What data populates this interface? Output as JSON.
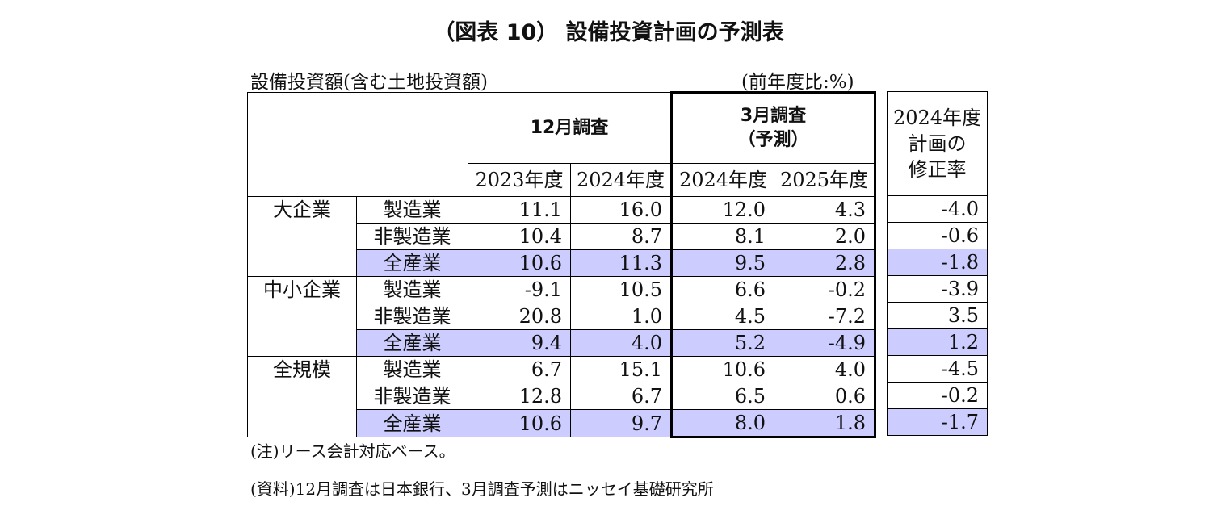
{
  "title": "（図表 10） 設備投資計画の予測表",
  "subtitle": "設備投資額(含む土地投資額)",
  "unit": "(前年度比:%)",
  "headers": {
    "survey_dec": "12月調査",
    "survey_mar_line1": "3月調査",
    "survey_mar_line2": "（予測）",
    "y2023": "2023年度",
    "y2024a": "2024年度",
    "y2024b": "2024年度",
    "y2025": "2025年度",
    "revision_line1": "2024年度",
    "revision_line2": "計画の",
    "revision_line3": "修正率"
  },
  "groups": [
    {
      "name": "大企業",
      "rows": [
        {
          "label": "製造業",
          "d2023": "11.1",
          "d2024": "16.0",
          "m2024": "12.0",
          "m2025": "4.3",
          "rev": "-4.0"
        },
        {
          "label": "非製造業",
          "d2023": "10.4",
          "d2024": "8.7",
          "m2024": "8.1",
          "m2025": "2.0",
          "rev": "-0.6"
        },
        {
          "label": "全産業",
          "d2023": "10.6",
          "d2024": "11.3",
          "m2024": "9.5",
          "m2025": "2.8",
          "rev": "-1.8"
        }
      ]
    },
    {
      "name": "中小企業",
      "rows": [
        {
          "label": "製造業",
          "d2023": "-9.1",
          "d2024": "10.5",
          "m2024": "6.6",
          "m2025": "-0.2",
          "rev": "-3.9"
        },
        {
          "label": "非製造業",
          "d2023": "20.8",
          "d2024": "1.0",
          "m2024": "4.5",
          "m2025": "-7.2",
          "rev": "3.5"
        },
        {
          "label": "全産業",
          "d2023": "9.4",
          "d2024": "4.0",
          "m2024": "5.2",
          "m2025": "-4.9",
          "rev": "1.2"
        }
      ]
    },
    {
      "name": "全規模",
      "rows": [
        {
          "label": "製造業",
          "d2023": "6.7",
          "d2024": "15.1",
          "m2024": "10.6",
          "m2025": "4.0",
          "rev": "-4.5"
        },
        {
          "label": "非製造業",
          "d2023": "12.8",
          "d2024": "6.7",
          "m2024": "6.5",
          "m2025": "0.6",
          "rev": "-0.2"
        },
        {
          "label": "全産業",
          "d2023": "10.6",
          "d2024": "9.7",
          "m2024": "8.0",
          "m2025": "1.8",
          "rev": "-1.7"
        }
      ]
    }
  ],
  "highlight_color": "#ccccff",
  "notes": {
    "note1": "(注)リース会計対応ベース。",
    "note2": "(資料)12月調査は日本銀行、3月調査予測はニッセイ基礎研究所"
  }
}
